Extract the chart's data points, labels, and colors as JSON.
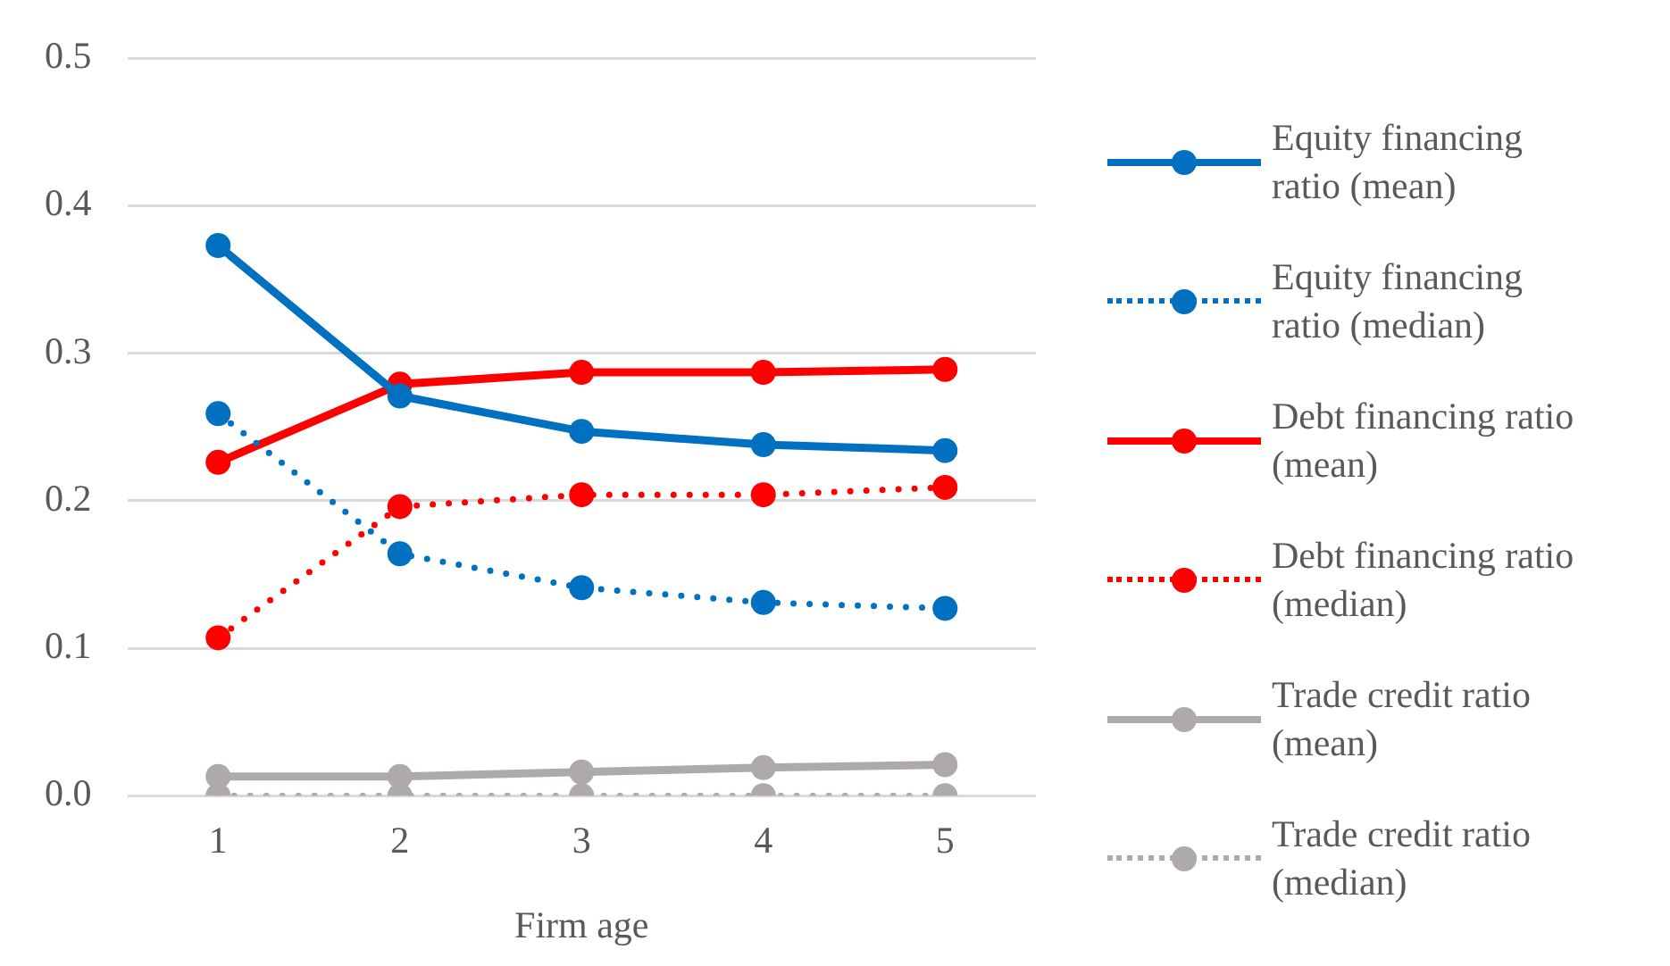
{
  "chart_data": {
    "type": "line",
    "xlabel": "Firm age",
    "categories": [
      "1",
      "2",
      "3",
      "4",
      "5"
    ],
    "ylim": [
      0,
      0.5
    ],
    "yticks": [
      {
        "value": 0,
        "label": "0.0"
      },
      {
        "value": 0.1,
        "label": "0.1"
      },
      {
        "value": 0.2,
        "label": "0.2"
      },
      {
        "value": 0.3,
        "label": "0.3"
      },
      {
        "value": 0.4,
        "label": "0.4"
      },
      {
        "value": 0.5,
        "label": "0.5"
      }
    ],
    "grid": "y",
    "legend": "right",
    "marker": "circle",
    "series": [
      {
        "name": "Equity financing ratio (mean)",
        "color": "#0070c0",
        "line_style": "solid",
        "values": [
          0.373,
          0.271,
          0.247,
          0.238,
          0.234
        ]
      },
      {
        "name": "Equity financing ratio (median)",
        "color": "#0070c0",
        "line_style": "dotted",
        "values": [
          0.259,
          0.164,
          0.141,
          0.131,
          0.127
        ]
      },
      {
        "name": "Debt financing ratio (mean)",
        "color": "#ff0000",
        "line_style": "solid",
        "values": [
          0.226,
          0.279,
          0.287,
          0.287,
          0.289
        ]
      },
      {
        "name": "Debt financing ratio (median)",
        "color": "#ff0000",
        "line_style": "dotted",
        "values": [
          0.107,
          0.196,
          0.204,
          0.204,
          0.209
        ]
      },
      {
        "name": "Trade credit ratio (mean)",
        "color": "#aeaaaa",
        "line_style": "solid",
        "values": [
          0.013,
          0.013,
          0.016,
          0.019,
          0.021
        ]
      },
      {
        "name": "Trade credit ratio (median)",
        "color": "#aeaaaa",
        "line_style": "dotted",
        "values": [
          0,
          0,
          0,
          0,
          0
        ]
      }
    ]
  }
}
